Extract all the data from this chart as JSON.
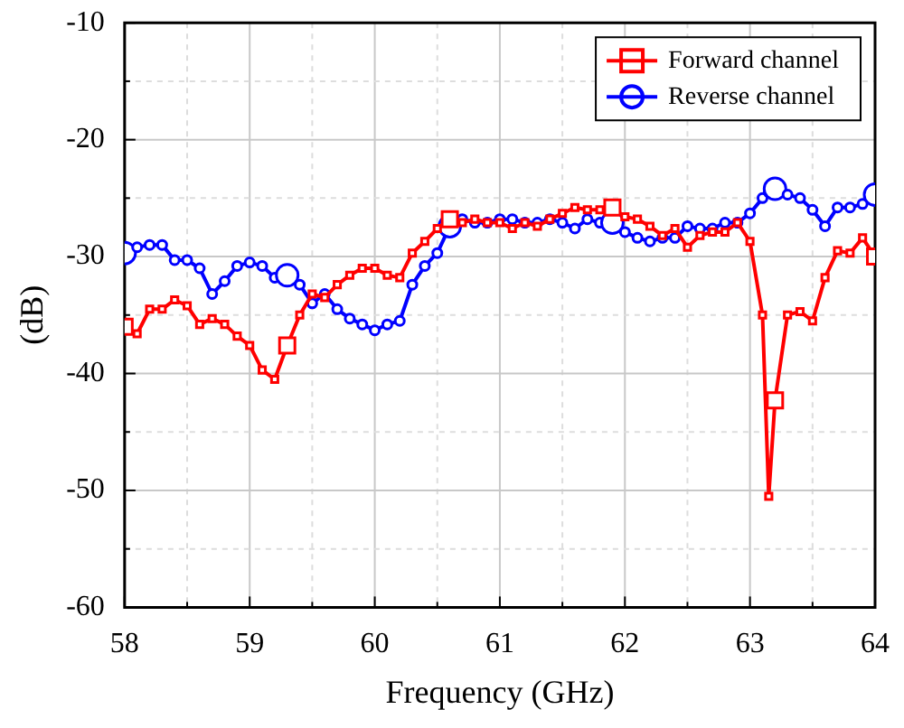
{
  "chart_data": {
    "type": "line",
    "xlabel": "Frequency (GHz)",
    "ylabel": "(dB)",
    "x": [
      58.0,
      58.1,
      58.2,
      58.3,
      58.4,
      58.5,
      58.6,
      58.7,
      58.8,
      58.9,
      59.0,
      59.1,
      59.2,
      59.3,
      59.4,
      59.5,
      59.6,
      59.7,
      59.8,
      59.9,
      60.0,
      60.1,
      60.2,
      60.3,
      60.4,
      60.5,
      60.6,
      60.7,
      60.8,
      60.9,
      61.0,
      61.1,
      61.2,
      61.3,
      61.4,
      61.5,
      61.6,
      61.7,
      61.8,
      61.9,
      62.0,
      62.1,
      62.2,
      62.3,
      62.4,
      62.5,
      62.6,
      62.7,
      62.8,
      62.9,
      63.0,
      63.1,
      63.15,
      63.2,
      63.3,
      63.4,
      63.5,
      63.6,
      63.7,
      63.8,
      63.9,
      64.0
    ],
    "series": [
      {
        "name": "Forward channel",
        "color": "#ff0000",
        "marker": "square",
        "values": [
          -36,
          -36.6,
          -34.5,
          -34.5,
          -33.7,
          -34.2,
          -35.8,
          -35.3,
          -35.8,
          -36.8,
          -37.6,
          -39.7,
          -40.5,
          -37.6,
          -35,
          -33.2,
          -33.5,
          -32.4,
          -31.6,
          -31,
          -31,
          -31.6,
          -31.8,
          -29.7,
          -28.7,
          -27.6,
          -26.8,
          -27.1,
          -26.8,
          -27.1,
          -27.1,
          -27.6,
          -27.1,
          -27.4,
          -26.8,
          -26.3,
          -25.8,
          -26,
          -26,
          -25.8,
          -26.6,
          -26.8,
          -27.4,
          -28.2,
          -27.6,
          -29.2,
          -28.2,
          -27.9,
          -27.9,
          -27.1,
          -28.7,
          -35,
          -50.5,
          -42.3,
          -35,
          -34.7,
          -35.5,
          -31.8,
          -29.5,
          -29.7,
          -28.4,
          -30
        ]
      },
      {
        "name": "Reverse channel",
        "color": "#0000ff",
        "marker": "circle",
        "values": [
          -29.7,
          -29.2,
          -29,
          -29,
          -30.3,
          -30.3,
          -31,
          -33.2,
          -32.1,
          -30.8,
          -30.5,
          -30.8,
          -31.8,
          -31.6,
          -32.4,
          -34,
          -33.2,
          -34.5,
          -35.3,
          -35.8,
          -36.3,
          -35.8,
          -35.5,
          -32.4,
          -30.8,
          -29.7,
          -27.4,
          -26.8,
          -27.1,
          -27.1,
          -26.8,
          -26.8,
          -27.1,
          -27.1,
          -26.8,
          -27.1,
          -27.6,
          -26.8,
          -27.1,
          -27.1,
          -27.9,
          -28.4,
          -28.7,
          -28.4,
          -28.4,
          -27.4,
          -27.6,
          -27.6,
          -27.1,
          -27.1,
          -26.3,
          -25,
          -24.5,
          -24.2,
          -24.7,
          -25,
          -26,
          -27.4,
          -25.8,
          -25.8,
          -25.5,
          -24.7
        ]
      }
    ],
    "xlim": [
      58,
      64
    ],
    "xticks": [
      58,
      {
        "value": 58.5,
        "label": null
      },
      59,
      {
        "value": 59.5,
        "label": null
      },
      60,
      {
        "value": 60.5,
        "label": null
      },
      61,
      {
        "value": 61.5,
        "label": null
      },
      62,
      {
        "value": 62.5,
        "label": null
      },
      63,
      {
        "value": 63.5,
        "label": null
      },
      64
    ],
    "ylim": [
      -60,
      -10
    ],
    "yticks": [
      -60,
      {
        "value": -55,
        "label": null
      },
      -50,
      {
        "value": -45,
        "label": null
      },
      -40,
      {
        "value": -35,
        "label": null
      },
      -30,
      {
        "value": -25,
        "label": null
      },
      -20,
      {
        "value": -15,
        "label": null
      },
      -10
    ],
    "grid": true,
    "legend": "top right",
    "line_style": "solid"
  }
}
